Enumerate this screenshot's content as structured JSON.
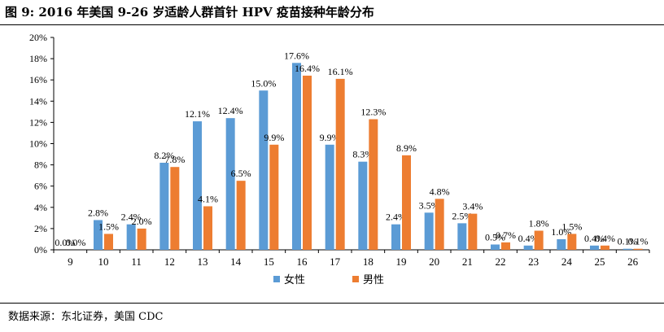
{
  "title": "图  9:  2016 年美国 9-26 岁适龄人群首针 HPV 疫苗接种年龄分布",
  "source": "数据来源：东北证券，美国 CDC",
  "colors": {
    "female": "#5B9BD5",
    "male": "#ED7D31",
    "axis": "#000000"
  },
  "chart_data": {
    "type": "bar",
    "categories": [
      "9",
      "10",
      "11",
      "12",
      "13",
      "14",
      "15",
      "16",
      "17",
      "18",
      "19",
      "20",
      "21",
      "22",
      "23",
      "24",
      "25",
      "26"
    ],
    "series": [
      {
        "name": "女性",
        "values": [
          0.0,
          2.8,
          2.4,
          8.2,
          12.1,
          12.4,
          15.0,
          17.6,
          9.9,
          8.3,
          2.4,
          3.5,
          2.5,
          0.5,
          0.4,
          1.0,
          0.4,
          0.1
        ]
      },
      {
        "name": "男性",
        "values": [
          0.0,
          1.5,
          2.0,
          7.8,
          4.1,
          6.5,
          9.9,
          16.4,
          16.1,
          12.3,
          8.9,
          4.8,
          3.4,
          0.7,
          1.8,
          1.5,
          0.4,
          0.1
        ]
      }
    ],
    "data_labels": [
      [
        "0.0%",
        "2.8%",
        "2.4%",
        "8.2%",
        "12.1%",
        "12.4%",
        "15.0%",
        "17.6%",
        "9.9%",
        "8.3%",
        "2.4%",
        "3.5%",
        "2.5%",
        "0.5%",
        "0.4%",
        "1.0%",
        "0.4%",
        "0.1%"
      ],
      [
        "0.0%",
        "1.5%",
        "2.0%",
        "7.8%",
        "4.1%",
        "6.5%",
        "9.9%",
        "16.4%",
        "16.1%",
        "12.3%",
        "8.9%",
        "4.8%",
        "3.4%",
        "0.7%",
        "1.8%",
        "1.5%",
        "0.4%",
        "0.1%"
      ]
    ],
    "y_ticks": [
      "0%",
      "2%",
      "4%",
      "6%",
      "8%",
      "10%",
      "12%",
      "14%",
      "16%",
      "18%",
      "20%"
    ],
    "ylim": [
      0,
      20
    ],
    "legend_position": "bottom-center",
    "grid": false
  }
}
